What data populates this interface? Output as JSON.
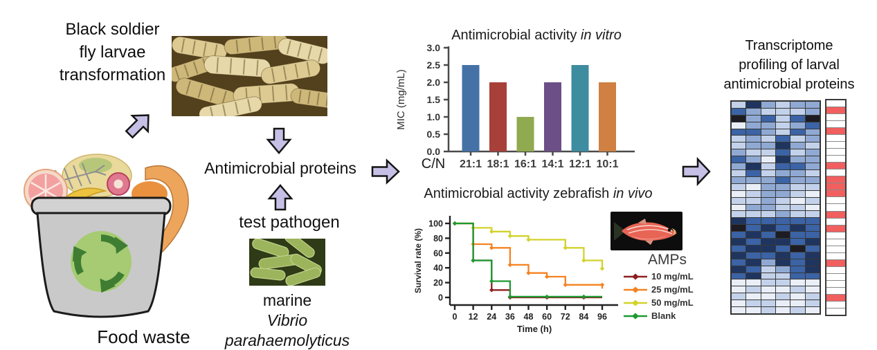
{
  "colors": {
    "arrow_fill": "#c6c0e6",
    "arrow_stroke": "#141414",
    "indicator_red": "#f15f5f",
    "axis_gray": "#4a4a4a",
    "axis_black": "#222222"
  },
  "left": {
    "bsf_lines": [
      "Black soldier",
      "fly larvae",
      "transformation"
    ],
    "food_waste_label": "Food waste"
  },
  "middle": {
    "amp_label": "Antimicrobial proteins",
    "test_pathogen_label": "test pathogen",
    "pathogen_prefix": "marine ",
    "pathogen_species_line1": "Vibrio",
    "pathogen_species_line2": "parahaemolyticus"
  },
  "right": {
    "title_lines": [
      "Transcriptome",
      "profiling of larval",
      "antimicrobial proteins"
    ]
  },
  "chart_data": [
    {
      "type": "bar",
      "title": "Antimicrobial activity in vitro",
      "title_regular": "Antimicrobial activity ",
      "title_italic": "in vitro",
      "xlabel": "C/N",
      "ylabel": "MIC (mg/mL)",
      "categories": [
        "21:1",
        "18:1",
        "16:1",
        "14:1",
        "12:1",
        "10:1"
      ],
      "values": [
        2.5,
        2.0,
        1.0,
        2.0,
        2.5,
        2.0
      ],
      "bar_colors": [
        "#4472a7",
        "#a8403a",
        "#8faa4f",
        "#6b4f86",
        "#3e8ca0",
        "#cf8042"
      ],
      "ylim": [
        0,
        3.0
      ],
      "yticks": [
        0.0,
        0.5,
        1.0,
        1.5,
        2.0,
        2.5,
        3.0
      ],
      "grid": false,
      "legend": "none"
    },
    {
      "type": "line",
      "title": "Antimicrobial activity zebrafish in vivo",
      "title_regular": "Antimicrobial activity zebrafish ",
      "title_italic": "in vivo",
      "xlabel": "Time (h)",
      "ylabel": "Survival rate (%)",
      "xticks": [
        0,
        12,
        24,
        36,
        48,
        60,
        72,
        84,
        96
      ],
      "yticks": [
        0,
        20,
        40,
        60,
        80,
        100
      ],
      "xlim": [
        0,
        96
      ],
      "ylim": [
        0,
        100
      ],
      "legend_title": "AMPs",
      "legend_position": "right",
      "series": [
        {
          "name": "10 mg/mL",
          "color": "#8e1f1f",
          "points": [
            [
              0,
              100
            ],
            [
              12,
              100
            ],
            [
              12,
              50
            ],
            [
              24,
              50
            ],
            [
              24,
              10
            ],
            [
              36,
              10
            ],
            [
              36,
              0
            ],
            [
              48,
              0
            ],
            [
              60,
              0
            ],
            [
              72,
              0
            ],
            [
              84,
              0
            ],
            [
              96,
              0
            ]
          ]
        },
        {
          "name": "25 mg/mL",
          "color": "#f58220",
          "points": [
            [
              0,
              100
            ],
            [
              12,
              100
            ],
            [
              12,
              72
            ],
            [
              24,
              72
            ],
            [
              24,
              67
            ],
            [
              36,
              67
            ],
            [
              36,
              44
            ],
            [
              48,
              44
            ],
            [
              48,
              33
            ],
            [
              60,
              33
            ],
            [
              60,
              28
            ],
            [
              72,
              28
            ],
            [
              72,
              17
            ],
            [
              84,
              17
            ],
            [
              96,
              17
            ],
            [
              96,
              12
            ]
          ]
        },
        {
          "name": "50 mg/mL",
          "color": "#d2d22b",
          "points": [
            [
              0,
              100
            ],
            [
              12,
              100
            ],
            [
              12,
              94
            ],
            [
              24,
              94
            ],
            [
              24,
              89
            ],
            [
              36,
              89
            ],
            [
              36,
              83
            ],
            [
              48,
              83
            ],
            [
              48,
              78
            ],
            [
              72,
              78
            ],
            [
              72,
              67
            ],
            [
              84,
              67
            ],
            [
              84,
              50
            ],
            [
              96,
              50
            ],
            [
              96,
              39
            ]
          ]
        },
        {
          "name": "Blank",
          "color": "#1d9932",
          "points": [
            [
              0,
              100
            ],
            [
              12,
              100
            ],
            [
              12,
              50
            ],
            [
              24,
              50
            ],
            [
              24,
              22
            ],
            [
              36,
              22
            ],
            [
              36,
              1
            ],
            [
              48,
              1
            ],
            [
              60,
              1
            ],
            [
              72,
              1
            ],
            [
              84,
              1
            ],
            [
              96,
              1
            ]
          ]
        }
      ]
    }
  ],
  "heatmap": {
    "n_rows": 31,
    "n_cols": 6,
    "palette": {
      "1": "#e9eef7",
      "2": "#c3d2ea",
      "3": "#8fa9d3",
      "4": "#3b63a5",
      "5": "#1f3560",
      "6": "#1c1c22"
    },
    "rows": [
      "253233",
      "432223",
      "634246",
      "133234",
      "443243",
      "232423",
      "233532",
      "322423",
      "431533",
      "352443",
      "242332",
      "333433",
      "213322",
      "123321",
      "223212",
      "133221",
      "222322",
      "544444",
      "645454",
      "454644",
      "545545",
      "455464",
      "544545",
      "453545",
      "542345",
      "452244",
      "112211",
      "121121",
      "211212",
      "122112",
      "112121"
    ],
    "indicator_red_rows": [
      2,
      5,
      10,
      12,
      13,
      14,
      17,
      19,
      24,
      29
    ],
    "indicator_red": "#f15f5f",
    "indicator_white": "#ffffff"
  }
}
